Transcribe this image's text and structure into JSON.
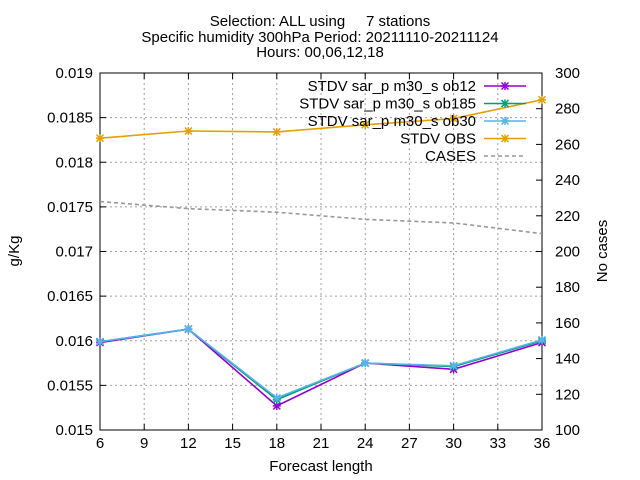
{
  "chart_data": {
    "type": "line",
    "title_lines": [
      "Selection: ALL using     7 stations",
      "Specific humidity 300hPa   Period: 20211110-20211124",
      "Hours: 00,06,12,18"
    ],
    "xlabel": "Forecast length",
    "ylabel": "g/Kg",
    "y2label": "No cases",
    "x_ticks": [
      6,
      9,
      12,
      15,
      18,
      21,
      24,
      27,
      30,
      33,
      36
    ],
    "y_ticks": [
      "0.015",
      "0.0155",
      "0.016",
      "0.0165",
      "0.017",
      "0.0175",
      "0.018",
      "0.0185",
      "0.019"
    ],
    "y2_ticks": [
      "100",
      "120",
      "140",
      "160",
      "180",
      "200",
      "220",
      "240",
      "260",
      "280",
      "300"
    ],
    "xlim": [
      6,
      36
    ],
    "ylim": [
      0.015,
      0.019
    ],
    "y2lim": [
      100,
      300
    ],
    "grid": true,
    "legend_position": "top-right",
    "series": [
      {
        "name": "STDV sar_p m30_s ob12",
        "axis": "y",
        "color": "#9400d3",
        "marker": "x",
        "x": [
          6,
          12,
          18,
          24,
          30,
          36
        ],
        "values": [
          0.01598,
          0.01613,
          0.01527,
          0.01575,
          0.01568,
          0.01598
        ]
      },
      {
        "name": "STDV sar_p m30_s ob185",
        "axis": "y",
        "color": "#009e73",
        "marker": "x",
        "x": [
          6,
          12,
          18,
          24,
          30,
          36
        ],
        "values": [
          0.01599,
          0.01613,
          0.01534,
          0.01575,
          0.01571,
          0.016
        ]
      },
      {
        "name": "STDV sar_p m30_s ob30",
        "axis": "y",
        "color": "#56b4e9",
        "marker": "x",
        "x": [
          6,
          12,
          18,
          24,
          30,
          36
        ],
        "values": [
          0.01599,
          0.01613,
          0.01536,
          0.01575,
          0.01572,
          0.01601
        ]
      },
      {
        "name": "STDV OBS",
        "axis": "y",
        "color": "#e69f00",
        "marker": "x",
        "x": [
          6,
          12,
          18,
          24,
          30,
          36
        ],
        "values": [
          0.01827,
          0.01835,
          0.01834,
          0.01842,
          0.01849,
          0.0187
        ]
      },
      {
        "name": "CASES",
        "axis": "y2",
        "color": "#999999",
        "marker": "none",
        "dashed": true,
        "x": [
          6,
          12,
          18,
          24,
          30,
          36
        ],
        "values": [
          228,
          224,
          222,
          218,
          216,
          210
        ]
      }
    ]
  }
}
